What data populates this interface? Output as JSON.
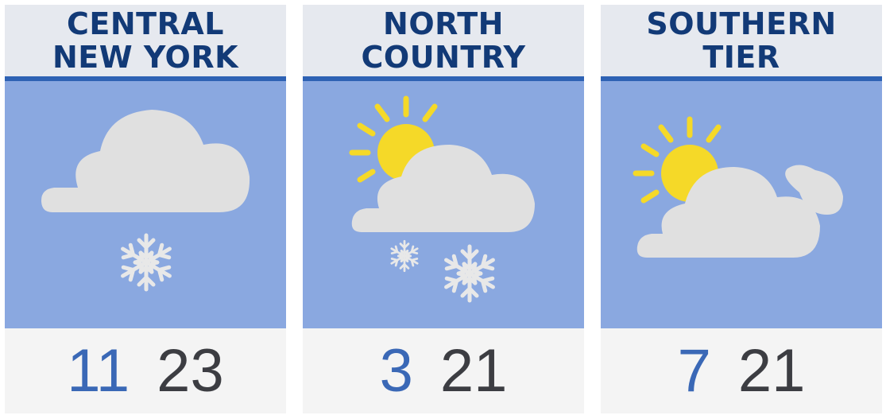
{
  "colors": {
    "header_text": "#123a77",
    "rule": "#2e62b4",
    "sky": "#8aa8e0",
    "low": "#3a68b6",
    "high": "#3c3d42",
    "cloud": "#e0e0e0",
    "sun": "#f5d928"
  },
  "regions": [
    {
      "title_line1": "CENTRAL",
      "title_line2": "NEW YORK",
      "icon": "cloud-snow-icon",
      "low": "11",
      "high": "23"
    },
    {
      "title_line1": "NORTH",
      "title_line2": "COUNTRY",
      "icon": "partly-sunny-snow-icon",
      "low": "3",
      "high": "21"
    },
    {
      "title_line1": "SOUTHERN",
      "title_line2": "TIER",
      "icon": "partly-cloudy-icon",
      "low": "7",
      "high": "21"
    }
  ]
}
